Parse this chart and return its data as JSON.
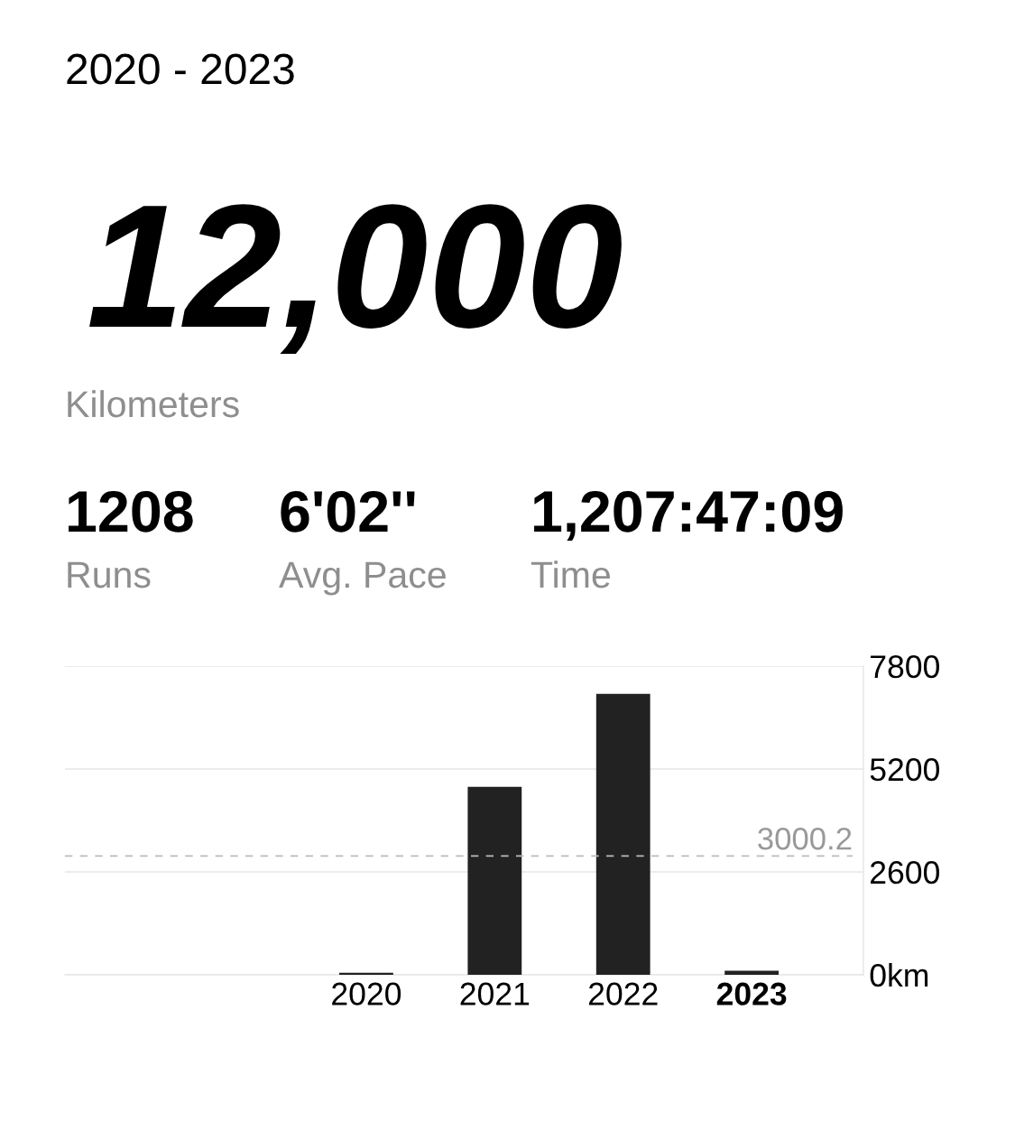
{
  "chart_data": {
    "type": "bar",
    "title": "2020 - 2023",
    "annotations": [
      "12,000",
      "Kilometers",
      "1208",
      "Runs",
      "6'02''",
      "Avg. Pace",
      "1,207:47:09",
      "Time"
    ],
    "categories": [
      null,
      null,
      "2020",
      "2021",
      "2022",
      "2023"
    ],
    "values": [
      null,
      null,
      50,
      4750,
      7100,
      100
    ],
    "color": "#222222",
    "ylim": [
      0,
      7800
    ],
    "yticks": [
      {
        "value": 0,
        "label": "0km"
      },
      2600,
      5200,
      7800
    ],
    "grid": "y",
    "ref_lines": [
      {
        "axis": "y",
        "value": 3000.2,
        "label": "3000.2",
        "color": "#bbbbbb",
        "line_style": "dashed"
      }
    ]
  }
}
